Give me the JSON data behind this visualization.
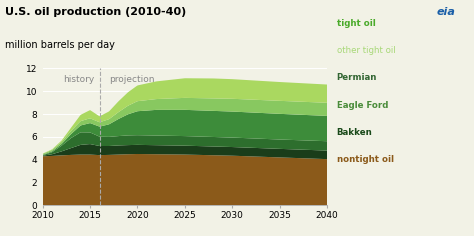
{
  "title": "U.S. oil production (2010-40)",
  "subtitle": "million barrels per day",
  "title_fontsize": 8,
  "subtitle_fontsize": 7,
  "ylim": [
    0,
    12
  ],
  "yticks": [
    0,
    2,
    4,
    6,
    8,
    10,
    12
  ],
  "xticks": [
    2010,
    2015,
    2020,
    2025,
    2030,
    2035,
    2040
  ],
  "vline_x": 2016,
  "history_label": "history",
  "projection_label": "projection",
  "bg_color": "#f2f2e6",
  "plot_bg_color": "#f2f2e6",
  "legend_labels": [
    "tight oil",
    "other tight oil",
    "Permian",
    "Eagle Ford",
    "Bakken",
    "nontight oil"
  ],
  "legend_colors": [
    "#4aaa2a",
    "#a8d878",
    "#336633",
    "#4a8c3a",
    "#1a4a1a",
    "#8b5a1a"
  ],
  "legend_bold": [
    true,
    false,
    true,
    true,
    true,
    true
  ],
  "colors": {
    "nontight_oil": "#8b5a1a",
    "bakken": "#1a3d1a",
    "eagle_ford": "#2d6e2d",
    "permian": "#3d8c3a",
    "other_tight": "#88c860",
    "tight_oil_top": "#aad860"
  },
  "grid_color": "#ffffff",
  "spine_color": "#aaaaaa",
  "tick_color": "#555555",
  "vline_color": "#aaaaaa",
  "hist_proj_color": "#888888"
}
